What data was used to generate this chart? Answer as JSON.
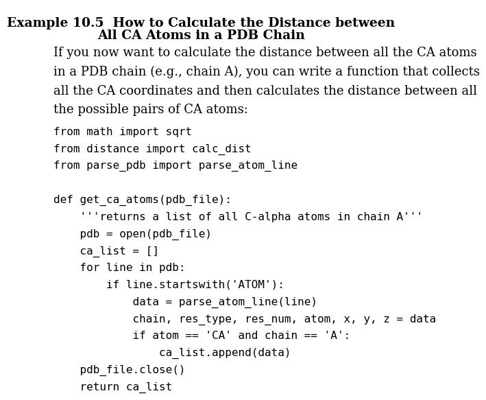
{
  "title_line1": "Example 10.5  How to Calculate the Distance between",
  "title_line2": "All CA Atoms in a PDB Chain",
  "body_lines": [
    "If you now want to calculate the distance between all the CA atoms",
    "in a PDB chain (e.g., chain A), you can write a function that collects",
    "all the CA coordinates and then calculates the distance between all",
    "the possible pairs of CA atoms:"
  ],
  "code_lines": [
    "from math import sqrt",
    "from distance import calc_dist",
    "from parse_pdb import parse_atom_line",
    "",
    "def get_ca_atoms(pdb_file):",
    "    '''returns a list of all C-alpha atoms in chain A'''",
    "    pdb = open(pdb_file)",
    "    ca_list = []",
    "    for line in pdb:",
    "        if line.startswith('ATOM'):",
    "            data = parse_atom_line(line)",
    "            chain, res_type, res_num, atom, x, y, z = data",
    "            if atom == 'CA' and chain == 'A':",
    "                ca_list.append(data)",
    "    pdb_file.close()",
    "    return ca_list"
  ],
  "bg_color": "#ffffff",
  "title_color": "#000000",
  "body_color": "#000000",
  "code_color": "#000000",
  "title_fontsize": 13.5,
  "body_fontsize": 13.0,
  "code_fontsize": 11.5,
  "fig_width": 6.32,
  "fig_height": 5.59
}
